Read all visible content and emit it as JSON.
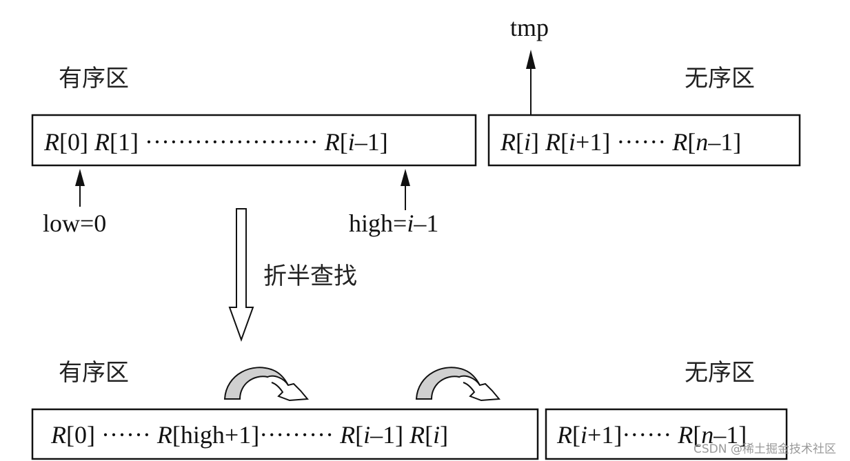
{
  "labels": {
    "sorted_top": "有序区",
    "unsorted_top": "无序区",
    "sorted_bottom": "有序区",
    "unsorted_bottom": "无序区",
    "tmp": "tmp",
    "low": "low=0",
    "high_prefix": "high=",
    "high_i": "i",
    "high_suffix": "–1",
    "step": "折半查找"
  },
  "top_sorted": {
    "r0": "R",
    "r0i": "[0] ",
    "r1": "R",
    "r1i": "[1] ",
    "dots": "·····················",
    "rl": " R",
    "rl_b1": "[",
    "rl_i": "i",
    "rl_b2": "–1]"
  },
  "top_unsorted": {
    "a": "R",
    "a1": "[",
    "a2": "i",
    "a3": "] ",
    "b": "R",
    "b1": "[",
    "b2": "i",
    "b3": "+1] ",
    "dots": "······ ",
    "c": "R",
    "c1": "[",
    "c2": "n",
    "c3": "–1]"
  },
  "bottom_sorted": {
    "a": "R",
    "a1": "[0] ",
    "dots1": "······ ",
    "b": "R",
    "b1": "[high+1]",
    "dots2": "·········",
    "c": " R",
    "c1": "[",
    "c2": "i",
    "c3": "–1] ",
    "d": "R",
    "d1": "[",
    "d2": "i",
    "d3": "]"
  },
  "bottom_unsorted": {
    "a": "R",
    "a1": "[",
    "a2": "i",
    "a3": "+1]",
    "dots": "······ ",
    "c": "R",
    "c1": "[",
    "c2": "n",
    "c3": "–1]"
  },
  "watermark": "CSDN @稀土掘金技术社区",
  "colors": {
    "stroke": "#111111",
    "arrow_fill": "#d0d0d0"
  }
}
